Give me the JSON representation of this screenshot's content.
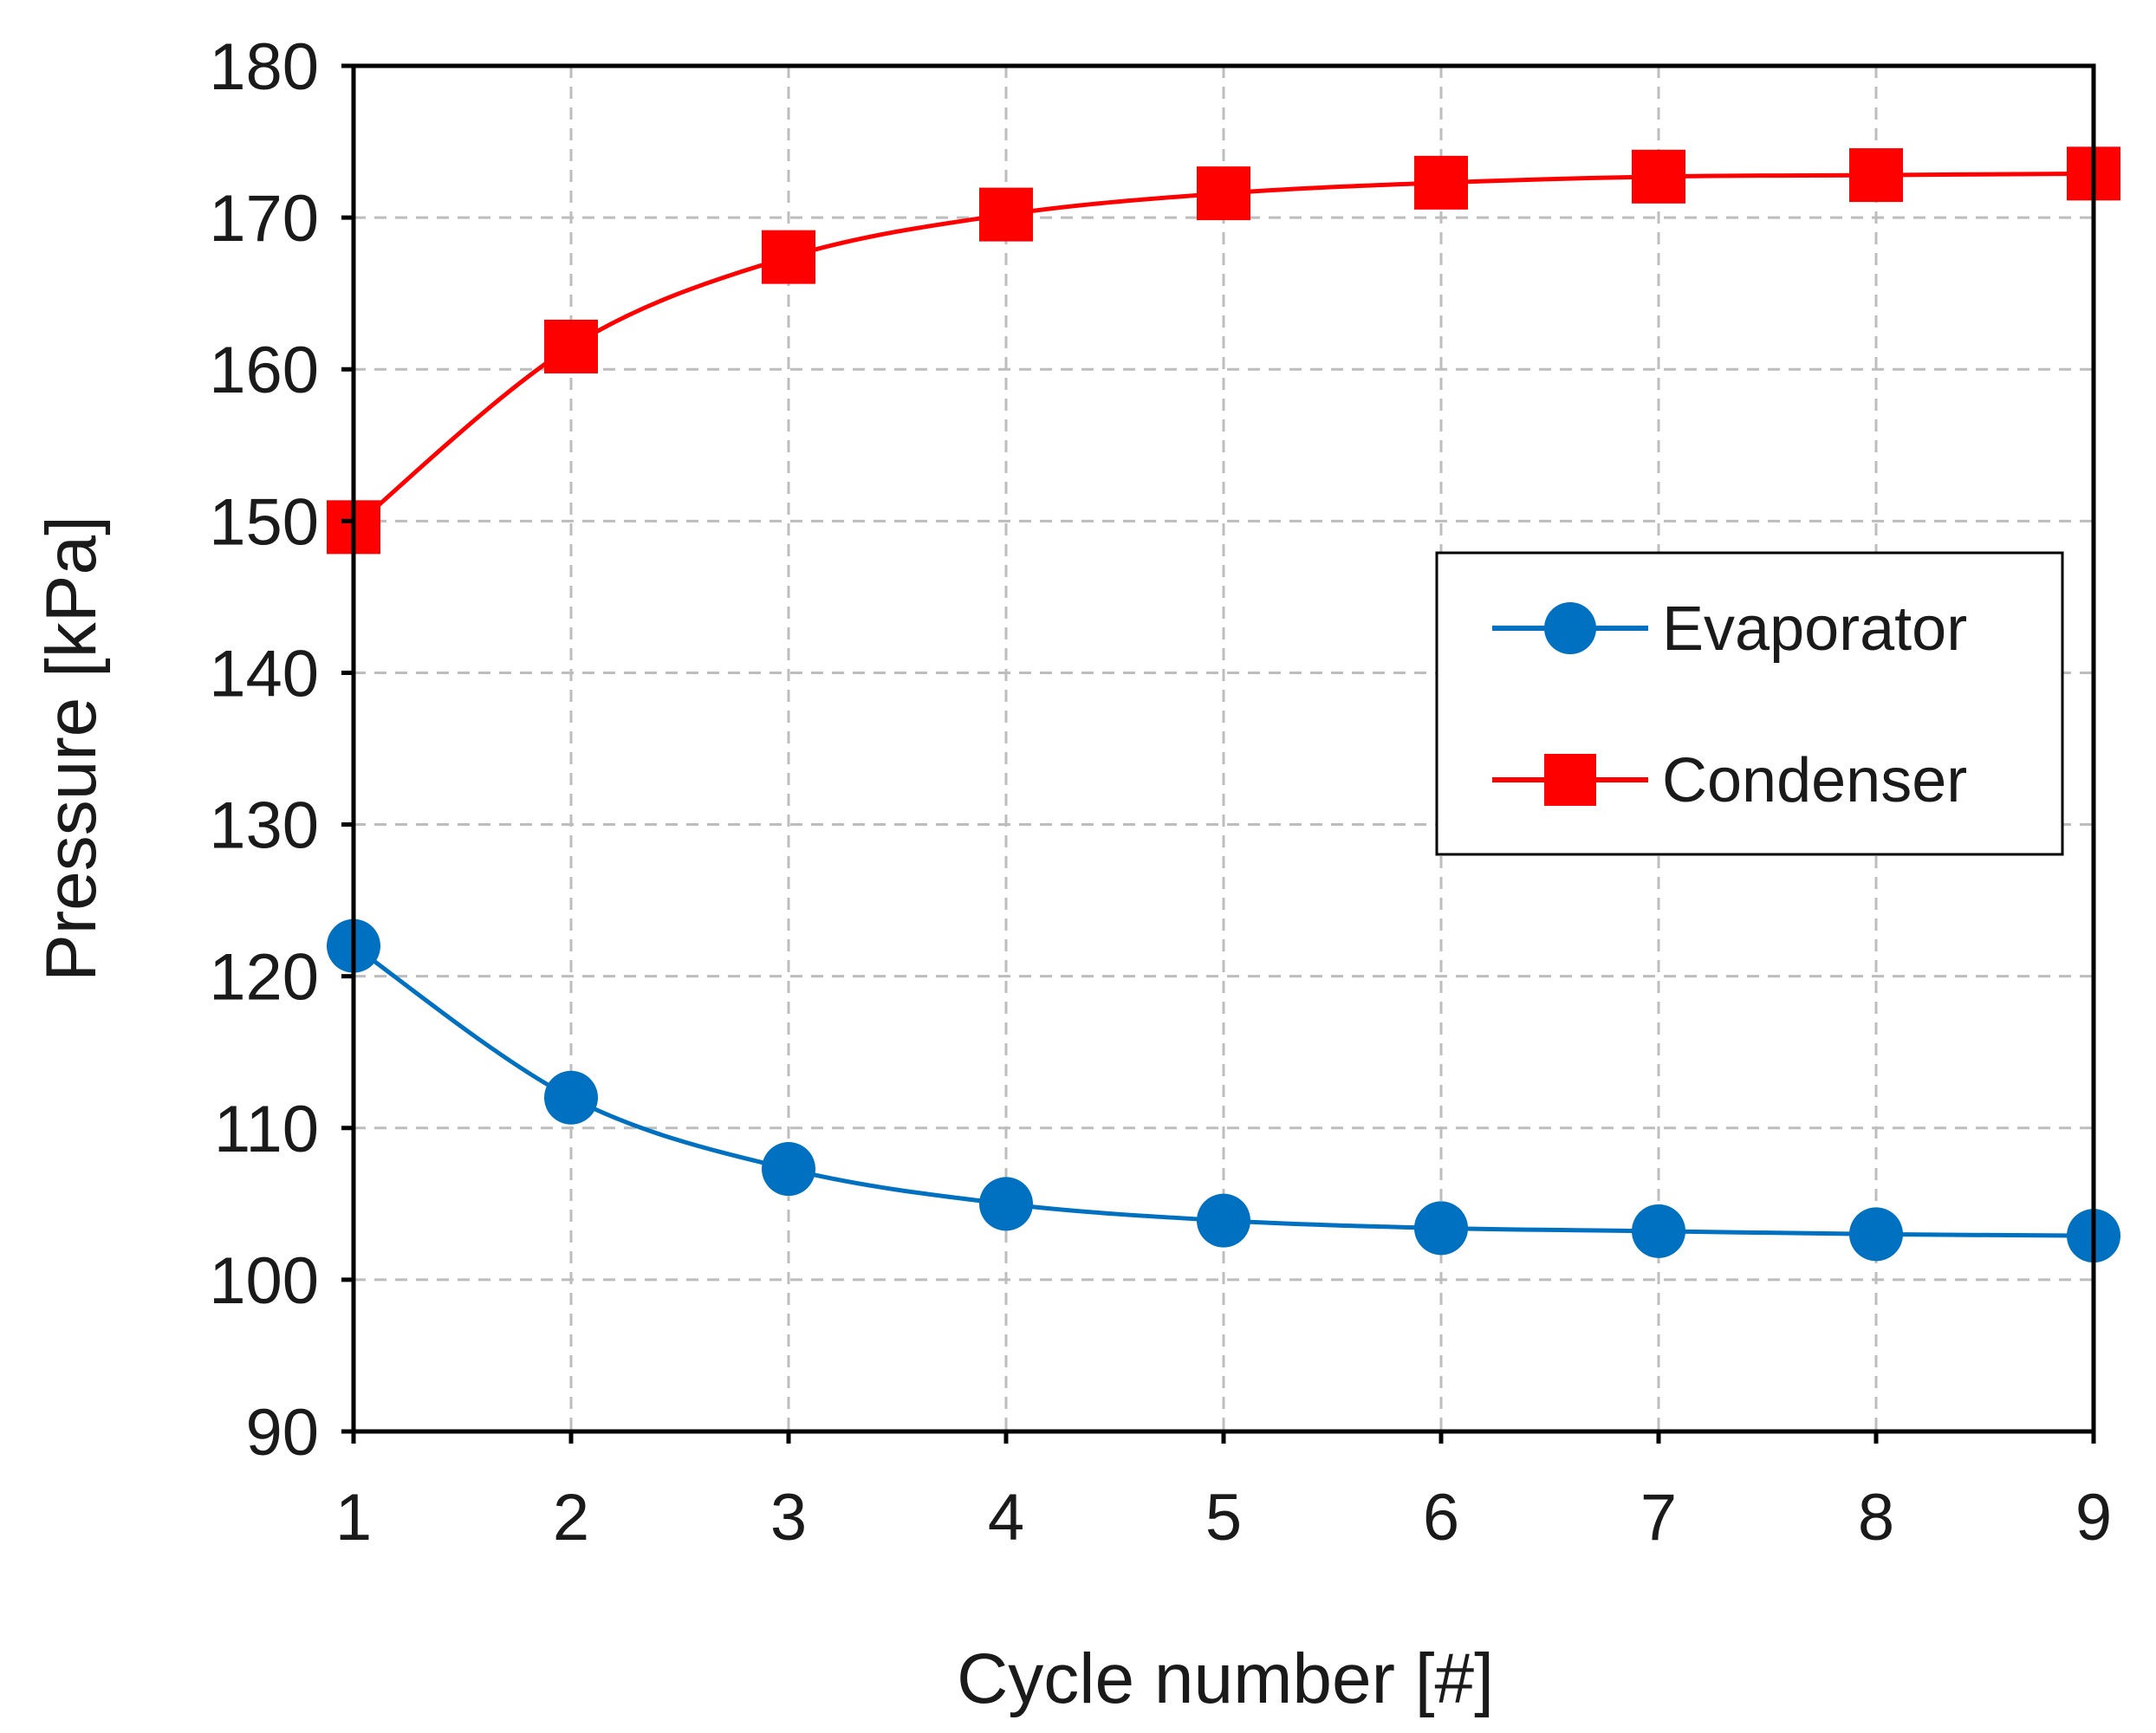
{
  "chart_data": {
    "type": "line",
    "title": "",
    "xlabel": "Cycle number [#]",
    "ylabel": "Pressure [kPa]",
    "x": [
      1,
      2,
      3,
      4,
      5,
      6,
      7,
      8,
      9
    ],
    "xlim": [
      1,
      9
    ],
    "ylim": [
      90,
      180
    ],
    "xticks": [
      1,
      2,
      3,
      4,
      5,
      6,
      7,
      8,
      9
    ],
    "yticks": [
      90,
      100,
      110,
      120,
      130,
      140,
      150,
      160,
      170,
      180
    ],
    "grid": true,
    "legend_position": "center-right",
    "series": [
      {
        "name": "Evaporator",
        "color": "#0070C0",
        "marker": "circle",
        "values": [
          122.0,
          112.0,
          107.3,
          105.0,
          103.9,
          103.4,
          103.2,
          103.0,
          102.9
        ]
      },
      {
        "name": "Condenser",
        "color": "#FF0000",
        "marker": "square",
        "values": [
          149.6,
          161.5,
          167.4,
          170.2,
          171.6,
          172.3,
          172.7,
          172.8,
          172.9
        ]
      }
    ]
  }
}
